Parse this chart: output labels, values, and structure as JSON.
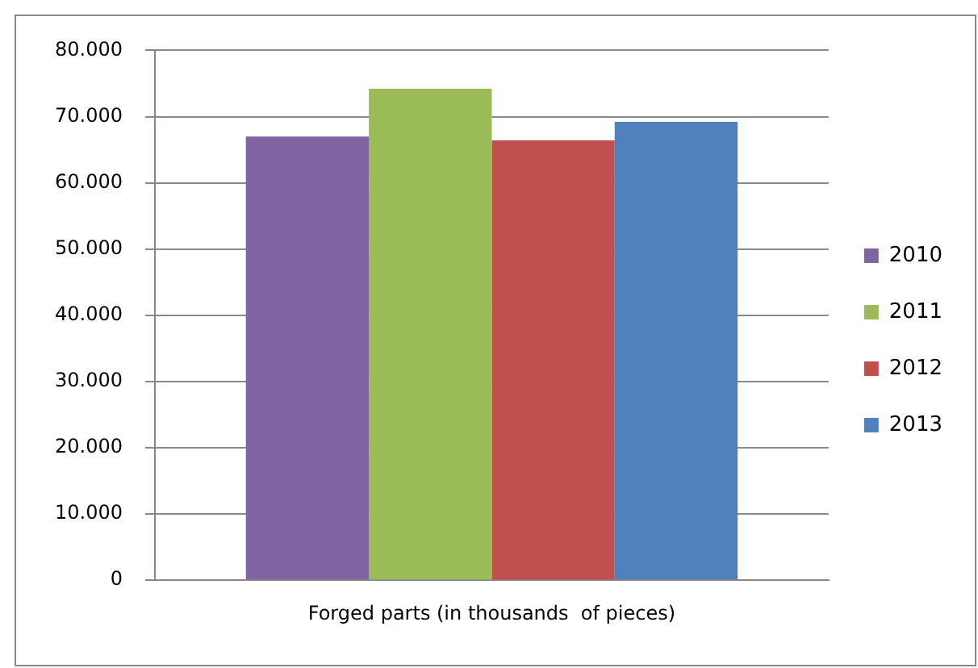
{
  "chart_data": {
    "type": "bar",
    "categories": [
      "Forged parts (in thousands  of pieces)"
    ],
    "series": [
      {
        "name": "2010",
        "color": "#8064a2",
        "values": [
          67000
        ]
      },
      {
        "name": "2011",
        "color": "#9bbb59",
        "values": [
          74200
        ]
      },
      {
        "name": "2012",
        "color": "#c0504d",
        "values": [
          66400
        ]
      },
      {
        "name": "2013",
        "color": "#4f81bd",
        "values": [
          69200
        ]
      }
    ],
    "ylim": [
      0,
      80000
    ],
    "yticks": [
      0,
      {
        "value": 10000,
        "label": "10.000"
      },
      {
        "value": 20000,
        "label": "20.000"
      },
      {
        "value": 30000,
        "label": "30.000"
      },
      {
        "value": 40000,
        "label": "40.000"
      },
      {
        "value": 50000,
        "label": "50.000"
      },
      {
        "value": 60000,
        "label": "60.000"
      },
      {
        "value": 70000,
        "label": "70.000"
      },
      {
        "value": 80000,
        "label": "80.000"
      }
    ],
    "grid": "y",
    "legend": "right"
  }
}
